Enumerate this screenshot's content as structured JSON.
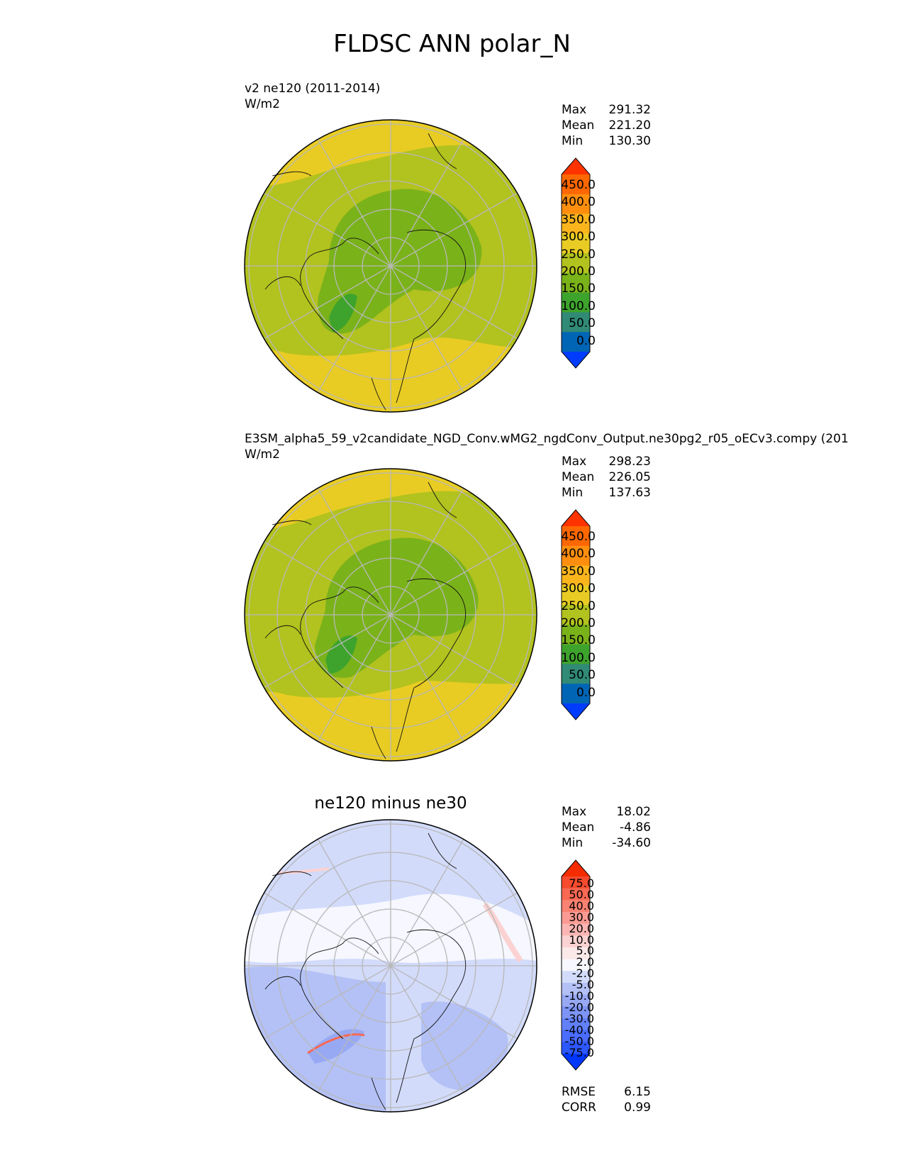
{
  "figure": {
    "title": "FLDSC ANN polar_N"
  },
  "panels": [
    {
      "id": "test",
      "title_line1": "v2 ne120 (2011-2014)",
      "units": "W/m2",
      "stats": [
        {
          "label": "Max",
          "value": "291.32"
        },
        {
          "label": "Mean",
          "value": "221.20"
        },
        {
          "label": "Min",
          "value": "130.30"
        }
      ],
      "colorbar": {
        "ticks": [
          "450.0",
          "400.0",
          "350.0",
          "300.0",
          "250.0",
          "200.0",
          "150.0",
          "100.0",
          "50.0",
          "0.0"
        ],
        "colors": [
          "#003cff",
          "#0065b5",
          "#308a75",
          "#3ea32d",
          "#7ab21a",
          "#b2c21e",
          "#e8cc24",
          "#fbb51c",
          "#ff8e0e",
          "#ff6700",
          "#ff3300"
        ]
      }
    },
    {
      "id": "ref",
      "title_line1": "E3SM_alpha5_59_v2candidate_NGD_Conv.wMG2_ngdConv_Output.ne30pg2_r05_oECv3.compy (201",
      "units": "W/m2",
      "stats": [
        {
          "label": "Max",
          "value": "298.23"
        },
        {
          "label": "Mean",
          "value": "226.05"
        },
        {
          "label": "Min",
          "value": "137.63"
        }
      ],
      "colorbar": {
        "ticks": [
          "450.0",
          "400.0",
          "350.0",
          "300.0",
          "250.0",
          "200.0",
          "150.0",
          "100.0",
          "50.0",
          "0.0"
        ],
        "colors": [
          "#003cff",
          "#0065b5",
          "#308a75",
          "#3ea32d",
          "#7ab21a",
          "#b2c21e",
          "#e8cc24",
          "#fbb51c",
          "#ff8e0e",
          "#ff6700",
          "#ff3300"
        ]
      }
    },
    {
      "id": "diff",
      "title": "ne120 minus ne30",
      "stats": [
        {
          "label": "Max",
          "value": "18.02"
        },
        {
          "label": "Mean",
          "value": "-4.86"
        },
        {
          "label": "Min",
          "value": "-34.60"
        }
      ],
      "metrics": [
        {
          "label": "RMSE",
          "value": "6.15"
        },
        {
          "label": "CORR",
          "value": "0.99"
        }
      ],
      "colorbar": {
        "ticks": [
          "75.0",
          "50.0",
          "40.0",
          "30.0",
          "20.0",
          "10.0",
          "5.0",
          "2.0",
          "-2.0",
          "-5.0",
          "-10.0",
          "-20.0",
          "-30.0",
          "-40.0",
          "-50.0",
          "-75.0"
        ],
        "colors": [
          "#0037ff",
          "#2d57ff",
          "#4a6cff",
          "#6380fb",
          "#7d94f6",
          "#98a9f4",
          "#b4c1f6",
          "#d2dbfa",
          "#f6f7ff",
          "#fbe9e9",
          "#fbd2d2",
          "#fbb6b3",
          "#fa9b93",
          "#f98272",
          "#f86852",
          "#f74a2e",
          "#f42c00"
        ]
      }
    }
  ],
  "chart_data": {
    "type": "heatmap",
    "title": "FLDSC ANN polar_N",
    "projection": "north polar stereographic",
    "variable": "FLDSC",
    "season": "ANN",
    "subplots": [
      {
        "name": "v2 ne120 (2011-2014)",
        "units": "W/m2",
        "max": 291.32,
        "mean": 221.2,
        "min": 130.3,
        "levels": [
          0,
          50,
          100,
          150,
          200,
          250,
          300,
          350,
          400,
          450
        ]
      },
      {
        "name": "E3SM_alpha5_59_v2candidate_NGD_Conv.wMG2_ngdConv_Output.ne30pg2_r05_oECv3.compy",
        "units": "W/m2",
        "max": 298.23,
        "mean": 226.05,
        "min": 137.63,
        "levels": [
          0,
          50,
          100,
          150,
          200,
          250,
          300,
          350,
          400,
          450
        ]
      },
      {
        "name": "ne120 minus ne30",
        "max": 18.02,
        "mean": -4.86,
        "min": -34.6,
        "rmse": 6.15,
        "corr": 0.99,
        "levels": [
          -75,
          -50,
          -40,
          -30,
          -20,
          -10,
          -5,
          -2,
          2,
          5,
          10,
          20,
          30,
          40,
          50,
          75
        ]
      }
    ]
  }
}
